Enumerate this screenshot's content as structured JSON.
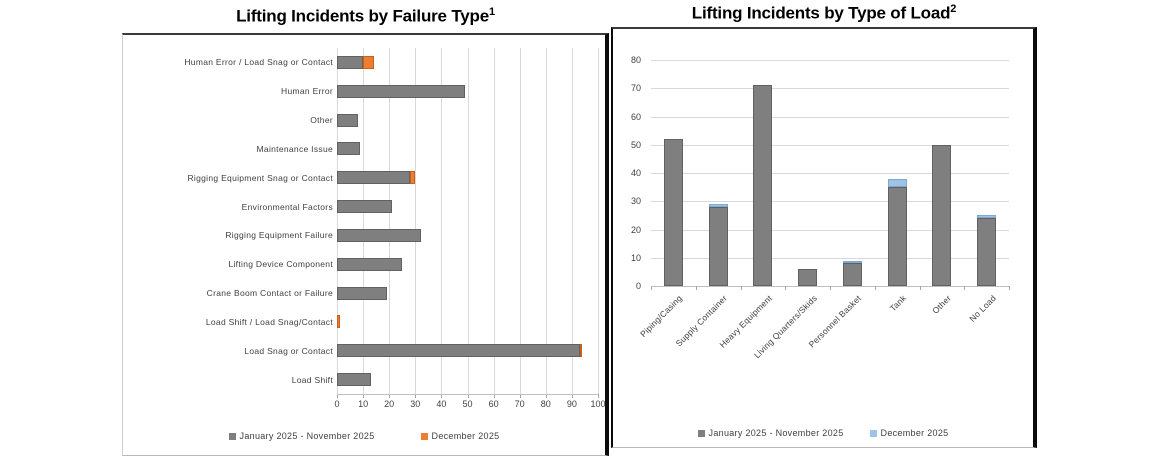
{
  "charts": [
    {
      "id": "failure-type",
      "title": "Lifting Incidents by Failure Type",
      "title_superscript": "1",
      "legend": [
        {
          "label": "January 2025 - November 2025",
          "color": "#7f7f7f"
        },
        {
          "label": "December 2025",
          "color": "#ed7d31"
        }
      ]
    },
    {
      "id": "type-of-load",
      "title": "Lifting Incidents by Type of Load",
      "title_superscript": "2",
      "legend": [
        {
          "label": "January 2025 - November 2025",
          "color": "#7f7f7f"
        },
        {
          "label": "December 2025",
          "color": "#9dc3e6"
        }
      ]
    }
  ],
  "chart_data": [
    {
      "type": "bar",
      "orientation": "horizontal",
      "stacked": true,
      "title": "Lifting Incidents by Failure Type",
      "categories": [
        "Human Error / Load Snag or Contact",
        "Human Error",
        "Other",
        "Maintenance Issue",
        "Rigging Equipment Snag or Contact",
        "Environmental Factors",
        "Rigging Equipment Failure",
        "Lifting Device Component",
        "Crane Boom Contact or Failure",
        "Load Shift / Load Snag/Contact",
        "Load Snag or Contact",
        "Load Shift"
      ],
      "series": [
        {
          "name": "January 2025 - November 2025",
          "color": "#7f7f7f",
          "values": [
            10,
            49,
            8,
            9,
            28,
            21,
            32,
            25,
            19,
            0,
            93,
            13
          ]
        },
        {
          "name": "December 2025",
          "color": "#ed7d31",
          "values": [
            4,
            0,
            0,
            0,
            2,
            0,
            0,
            0,
            0,
            1,
            1,
            0
          ]
        }
      ],
      "xlim": [
        0,
        100
      ],
      "x_ticks": [
        0,
        10,
        20,
        30,
        40,
        50,
        60,
        70,
        80,
        90,
        100
      ],
      "grid": "vertical",
      "legend_position": "bottom"
    },
    {
      "type": "bar",
      "orientation": "vertical",
      "stacked": true,
      "title": "Lifting Incidents by Type of Load",
      "categories": [
        "Piping/Casing",
        "Supply Container",
        "Heavy Equipment",
        "Living Quarters/Skids",
        "Personnel Basket",
        "Tank",
        "Other",
        "No Load"
      ],
      "series": [
        {
          "name": "January 2025 - November 2025",
          "color": "#7f7f7f",
          "values": [
            52,
            28,
            71,
            6,
            8,
            35,
            50,
            24
          ]
        },
        {
          "name": "December 2025",
          "color": "#9dc3e6",
          "values": [
            0,
            1,
            0,
            0,
            1,
            3,
            0,
            1
          ]
        }
      ],
      "ylim": [
        0,
        80
      ],
      "y_ticks": [
        0,
        10,
        20,
        30,
        40,
        50,
        60,
        70,
        80
      ],
      "grid": "horizontal",
      "legend_position": "bottom"
    }
  ],
  "colors": {
    "series_jan_nov": "#7f7f7f",
    "series_dec_failure": "#ed7d31",
    "series_dec_load": "#9dc3e6",
    "gridline": "#d9d9d9",
    "axis_line": "#bfbfbf",
    "axis_text": "#404040",
    "title_text": "#000000",
    "panel_border": "#000000"
  }
}
